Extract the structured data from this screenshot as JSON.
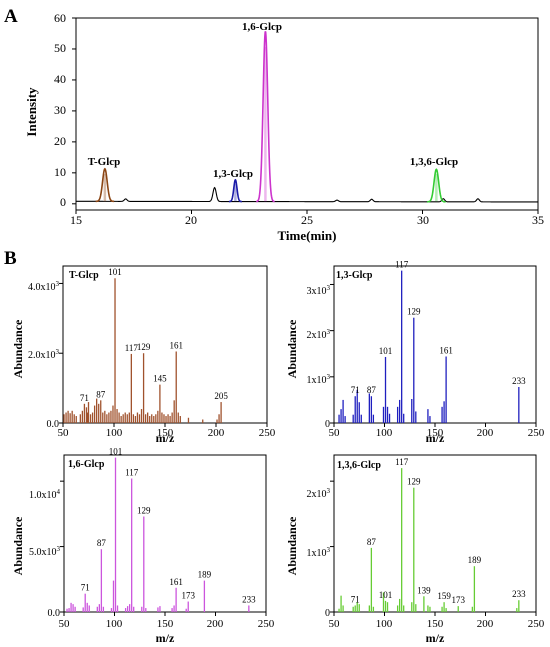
{
  "panel_labels": {
    "a": "A",
    "b": "B"
  },
  "tick_exponents": [
    "3",
    "3",
    "3",
    "4",
    "3",
    "3"
  ],
  "chart_data": [
    {
      "id": "chromatogram",
      "type": "line",
      "xlabel": "Time(min)",
      "ylabel": "Intensity",
      "xlim": [
        15,
        35
      ],
      "ylim": [
        -2,
        60
      ],
      "xticks": [
        15,
        20,
        25,
        30,
        35
      ],
      "yticks": [
        0,
        10,
        20,
        30,
        40,
        50,
        60
      ],
      "baseline": 0.8,
      "peaks": [
        {
          "rt": 16.25,
          "height": 10.5,
          "sigma": 0.1,
          "color": "#8B4513"
        },
        {
          "rt": 17.15,
          "height": 0.8,
          "sigma": 0.06,
          "color": "#000000"
        },
        {
          "rt": 21.0,
          "height": 4.5,
          "sigma": 0.07,
          "color": "#000000"
        },
        {
          "rt": 21.9,
          "height": 7.0,
          "sigma": 0.07,
          "color": "#1a1aa8"
        },
        {
          "rt": 23.2,
          "height": 55.0,
          "sigma": 0.1,
          "color": "#cc33cc"
        },
        {
          "rt": 26.3,
          "height": 0.5,
          "sigma": 0.06,
          "color": "#000000"
        },
        {
          "rt": 27.8,
          "height": 0.8,
          "sigma": 0.06,
          "color": "#000000"
        },
        {
          "rt": 30.6,
          "height": 10.5,
          "sigma": 0.1,
          "color": "#33cc33"
        },
        {
          "rt": 30.9,
          "height": 1.0,
          "sigma": 0.06,
          "color": "#000000"
        },
        {
          "rt": 32.4,
          "height": 1.0,
          "sigma": 0.06,
          "color": "#000000"
        }
      ],
      "annotations": [
        {
          "text": "T-Glcp",
          "x": 16.25,
          "y": 13.5
        },
        {
          "text": "1,3-Glcp",
          "x": 21.95,
          "y": 9.5
        },
        {
          "text": "1,6-Glcp",
          "x": 23.2,
          "y": 58.5
        },
        {
          "text": "1,3,6-Glcp",
          "x": 30.6,
          "y": 13.5
        }
      ]
    },
    {
      "id": "ms-t-glcp",
      "type": "bar",
      "title": "T-Glcp",
      "xlabel": "m/z",
      "ylabel": "Abundance",
      "color": "#a0522d",
      "xlim": [
        50,
        250
      ],
      "ylim": [
        0,
        4500
      ],
      "xticks": [
        50,
        100,
        150,
        200,
        250
      ],
      "yticks": [
        0,
        2000,
        4000
      ],
      "ytick_labels": [
        "0.0",
        "2.0x10",
        "4.0x10"
      ],
      "peaks": [
        [
          101,
          4150,
          "101"
        ],
        [
          117,
          1980,
          "117"
        ],
        [
          129,
          2000,
          "129"
        ],
        [
          145,
          1100,
          "145"
        ],
        [
          161,
          2050,
          "161"
        ],
        [
          205,
          600,
          "205"
        ],
        [
          71,
          550,
          "71"
        ],
        [
          87,
          650,
          "87"
        ],
        [
          51,
          250
        ],
        [
          53,
          300
        ],
        [
          55,
          350
        ],
        [
          57,
          280
        ],
        [
          59,
          350
        ],
        [
          61,
          250
        ],
        [
          63,
          200
        ],
        [
          67,
          250
        ],
        [
          69,
          350
        ],
        [
          73,
          450
        ],
        [
          74,
          300
        ],
        [
          75,
          600
        ],
        [
          77,
          250
        ],
        [
          79,
          300
        ],
        [
          81,
          500
        ],
        [
          83,
          700
        ],
        [
          85,
          550
        ],
        [
          89,
          300
        ],
        [
          91,
          350
        ],
        [
          93,
          250
        ],
        [
          95,
          300
        ],
        [
          97,
          350
        ],
        [
          99,
          500
        ],
        [
          103,
          400
        ],
        [
          105,
          300
        ],
        [
          107,
          200
        ],
        [
          109,
          250
        ],
        [
          111,
          300
        ],
        [
          113,
          250
        ],
        [
          115,
          300
        ],
        [
          119,
          250
        ],
        [
          121,
          200
        ],
        [
          123,
          300
        ],
        [
          125,
          250
        ],
        [
          127,
          400
        ],
        [
          131,
          250
        ],
        [
          133,
          300
        ],
        [
          135,
          200
        ],
        [
          137,
          250
        ],
        [
          139,
          200
        ],
        [
          141,
          250
        ],
        [
          143,
          350
        ],
        [
          147,
          300
        ],
        [
          149,
          250
        ],
        [
          151,
          200
        ],
        [
          153,
          250
        ],
        [
          155,
          200
        ],
        [
          157,
          300
        ],
        [
          159,
          650
        ],
        [
          163,
          300
        ],
        [
          165,
          200
        ],
        [
          173,
          150
        ],
        [
          187,
          100
        ],
        [
          201,
          100
        ],
        [
          203,
          250
        ]
      ]
    },
    {
      "id": "ms-13-glcp",
      "type": "bar",
      "title": "1,3-Glcp",
      "xlabel": "m/z",
      "ylabel": "Abundance",
      "color": "#1f1fbf",
      "xlim": [
        50,
        250
      ],
      "ylim": [
        0,
        3400
      ],
      "xticks": [
        50,
        100,
        150,
        200,
        250
      ],
      "yticks": [
        0,
        1000,
        2000,
        3000
      ],
      "ytick_labels": [
        "0",
        "1x10",
        "2x10",
        "3x10"
      ],
      "peaks": [
        [
          117,
          3300,
          "117"
        ],
        [
          129,
          2280,
          "129"
        ],
        [
          101,
          1430,
          "101"
        ],
        [
          161,
          1440,
          "161"
        ],
        [
          233,
          780,
          "233"
        ],
        [
          71,
          580,
          "71"
        ],
        [
          87,
          580,
          "87"
        ],
        [
          55,
          180
        ],
        [
          57,
          300
        ],
        [
          59,
          500
        ],
        [
          61,
          150
        ],
        [
          69,
          180
        ],
        [
          73,
          720
        ],
        [
          75,
          450
        ],
        [
          77,
          180
        ],
        [
          85,
          640
        ],
        [
          89,
          180
        ],
        [
          99,
          350
        ],
        [
          103,
          350
        ],
        [
          105,
          200
        ],
        [
          113,
          350
        ],
        [
          115,
          500
        ],
        [
          119,
          200
        ],
        [
          127,
          520
        ],
        [
          131,
          250
        ],
        [
          143,
          300
        ],
        [
          145,
          150
        ],
        [
          157,
          350
        ],
        [
          159,
          470
        ]
      ]
    },
    {
      "id": "ms-16-glcp",
      "type": "bar",
      "title": "1,6-Glcp",
      "xlabel": "m/z",
      "ylabel": "Abundance",
      "color": "#cc55dd",
      "xlim": [
        50,
        250
      ],
      "ylim": [
        0,
        12000
      ],
      "xticks": [
        50,
        100,
        150,
        200,
        250
      ],
      "yticks": [
        0,
        5000,
        10000
      ],
      "ytick_labels": [
        "0.0",
        "5.0x10",
        "1.0x10"
      ],
      "peaks": [
        [
          101,
          11800,
          "101"
        ],
        [
          117,
          10200,
          "117"
        ],
        [
          129,
          7300,
          "129"
        ],
        [
          87,
          4800,
          "87"
        ],
        [
          189,
          2400,
          "189"
        ],
        [
          161,
          1850,
          "161"
        ],
        [
          71,
          1400,
          "71"
        ],
        [
          173,
          800,
          "173"
        ],
        [
          233,
          500,
          "233"
        ],
        [
          53,
          250
        ],
        [
          55,
          300
        ],
        [
          57,
          700
        ],
        [
          59,
          600
        ],
        [
          61,
          400
        ],
        [
          69,
          350
        ],
        [
          73,
          700
        ],
        [
          75,
          500
        ],
        [
          83,
          400
        ],
        [
          85,
          600
        ],
        [
          89,
          400
        ],
        [
          97,
          300
        ],
        [
          99,
          2400
        ],
        [
          103,
          500
        ],
        [
          111,
          300
        ],
        [
          113,
          450
        ],
        [
          115,
          600
        ],
        [
          119,
          400
        ],
        [
          127,
          400
        ],
        [
          131,
          300
        ],
        [
          143,
          350
        ],
        [
          145,
          450
        ],
        [
          157,
          300
        ],
        [
          159,
          500
        ],
        [
          171,
          250
        ]
      ]
    },
    {
      "id": "ms-136-glcp",
      "type": "bar",
      "title": "1,3,6-Glcp",
      "xlabel": "m/z",
      "ylabel": "Abundance",
      "color": "#66cc33",
      "xlim": [
        50,
        250
      ],
      "ylim": [
        0,
        2400
      ],
      "xticks": [
        50,
        100,
        150,
        200,
        250
      ],
      "yticks": [
        0,
        1000,
        2000
      ],
      "ytick_labels": [
        "0",
        "1x10",
        "2x10"
      ],
      "peaks": [
        [
          117,
          2200,
          "117"
        ],
        [
          129,
          1900,
          "129"
        ],
        [
          87,
          980,
          "87"
        ],
        [
          189,
          700,
          "189"
        ],
        [
          139,
          240,
          "139"
        ],
        [
          101,
          170,
          "101"
        ],
        [
          71,
          100,
          "71"
        ],
        [
          159,
          150,
          "159"
        ],
        [
          173,
          90,
          "173"
        ],
        [
          233,
          180,
          "233"
        ],
        [
          55,
          50
        ],
        [
          57,
          250
        ],
        [
          59,
          100
        ],
        [
          69,
          80
        ],
        [
          73,
          150
        ],
        [
          75,
          120
        ],
        [
          85,
          100
        ],
        [
          89,
          80
        ],
        [
          99,
          300
        ],
        [
          103,
          150
        ],
        [
          113,
          100
        ],
        [
          115,
          200
        ],
        [
          119,
          100
        ],
        [
          127,
          150
        ],
        [
          131,
          120
        ],
        [
          143,
          100
        ],
        [
          145,
          80
        ],
        [
          157,
          80
        ],
        [
          161,
          60
        ],
        [
          187,
          80
        ],
        [
          231,
          60
        ]
      ]
    }
  ]
}
